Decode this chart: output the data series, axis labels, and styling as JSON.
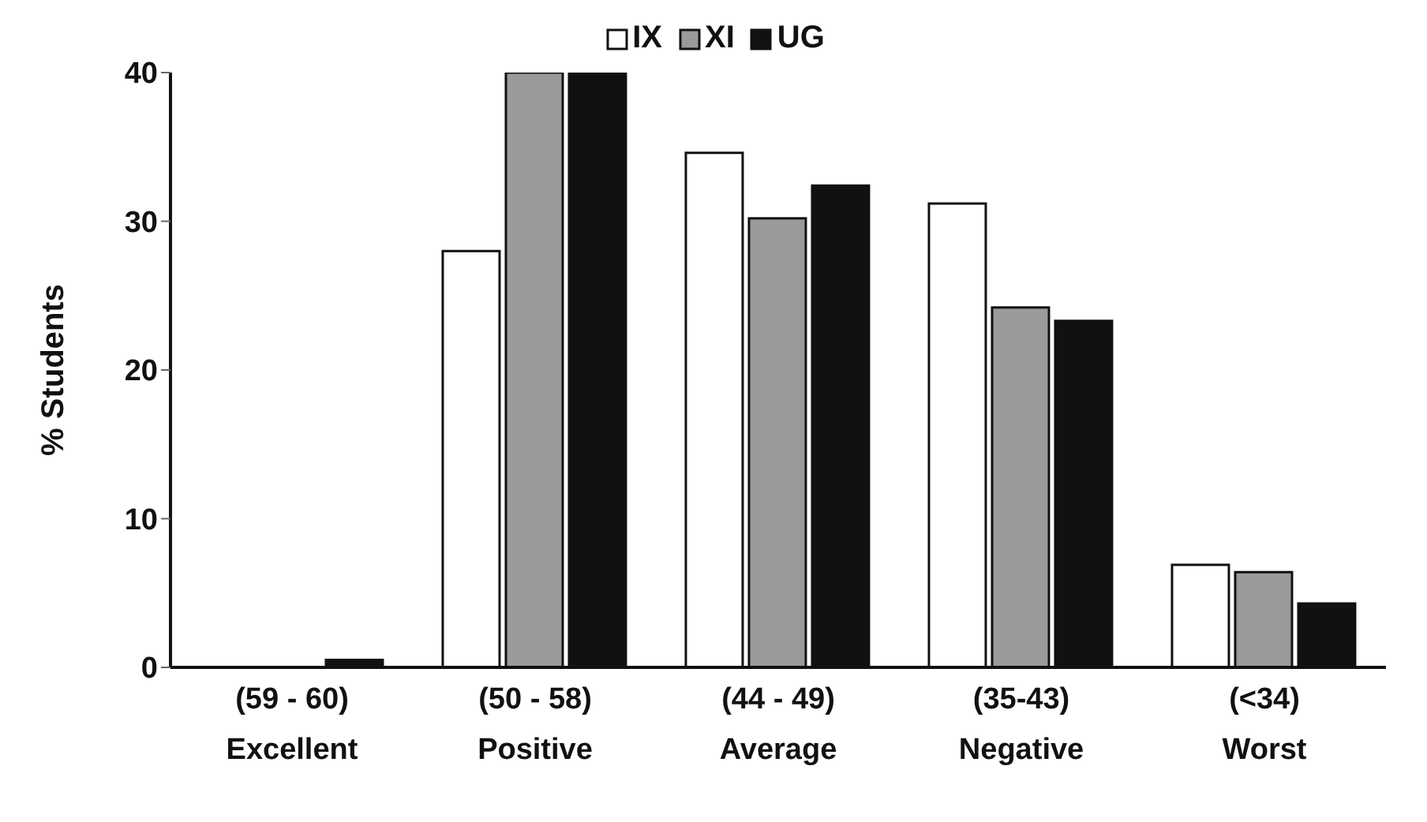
{
  "chart_data": {
    "type": "bar",
    "ylabel": "% Students",
    "categories": [
      "(59 - 60)\nExcellent",
      "(50 - 58)\nPositive",
      "(44 - 49)\nAverage",
      "(35-43)\nNegative",
      "(<34)\nWorst"
    ],
    "series": [
      {
        "name": "IX",
        "color": "#ffffff",
        "values": [
          0,
          28,
          34.6,
          31.2,
          6.9
        ]
      },
      {
        "name": "XI",
        "color": "#9a9a9a",
        "values": [
          0,
          40,
          30.2,
          24.2,
          6.4
        ]
      },
      {
        "name": "UG",
        "color": "#111111",
        "values": [
          0.5,
          40,
          32.4,
          23.3,
          4.3
        ]
      }
    ],
    "ylim": [
      0,
      40
    ],
    "yticks": [
      0,
      10,
      20,
      30,
      40
    ],
    "grid": false,
    "legend": "top"
  }
}
